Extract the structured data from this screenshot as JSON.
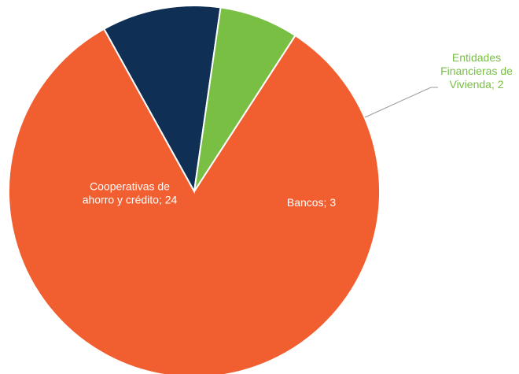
{
  "chart_data": {
    "type": "pie",
    "slices": [
      {
        "label_lines": [
          "Cooperativas de",
          "ahorro y crédito; 24"
        ],
        "value": 24,
        "color": "#F15F31",
        "label_color": "#ffffff"
      },
      {
        "label_lines": [
          "Bancos; 3"
        ],
        "value": 3,
        "color": "#102F55",
        "label_color": "#ffffff"
      },
      {
        "label_lines": [
          "Entidades",
          "Financieras de",
          "Vivienda; 2"
        ],
        "value": 2,
        "color": "#78BF44",
        "label_color": "#78BF44"
      }
    ]
  }
}
